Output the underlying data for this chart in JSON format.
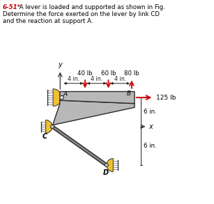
{
  "title_number": "6-51*",
  "title_line1": " A lever is loaded and supported as shown in Fig.",
  "title_line2": "Determine the force exerted on the lever by link CD",
  "title_line3": "and the reaction at support A.",
  "title_color": "#cc0000",
  "bg_color": "#ffffff",
  "lever_fill": "#b8b8b8",
  "lever_edge": "#2a2a2a",
  "link_fill": "#888888",
  "link_edge": "#2a2a2a",
  "force_color": "#cc1111",
  "dim_color": "#222222",
  "text_color": "#000000",
  "wall_fill": "#f0c030",
  "wall_edge": "#444444",
  "pin_fill": "#d0d0d0",
  "pin_edge": "#333333",
  "A": [
    0.195,
    0.535
  ],
  "B": [
    0.64,
    0.535
  ],
  "C": [
    0.135,
    0.35
  ],
  "D": [
    0.48,
    0.105
  ],
  "force_125": "125 lb",
  "axis_x": "x",
  "axis_y": "y"
}
